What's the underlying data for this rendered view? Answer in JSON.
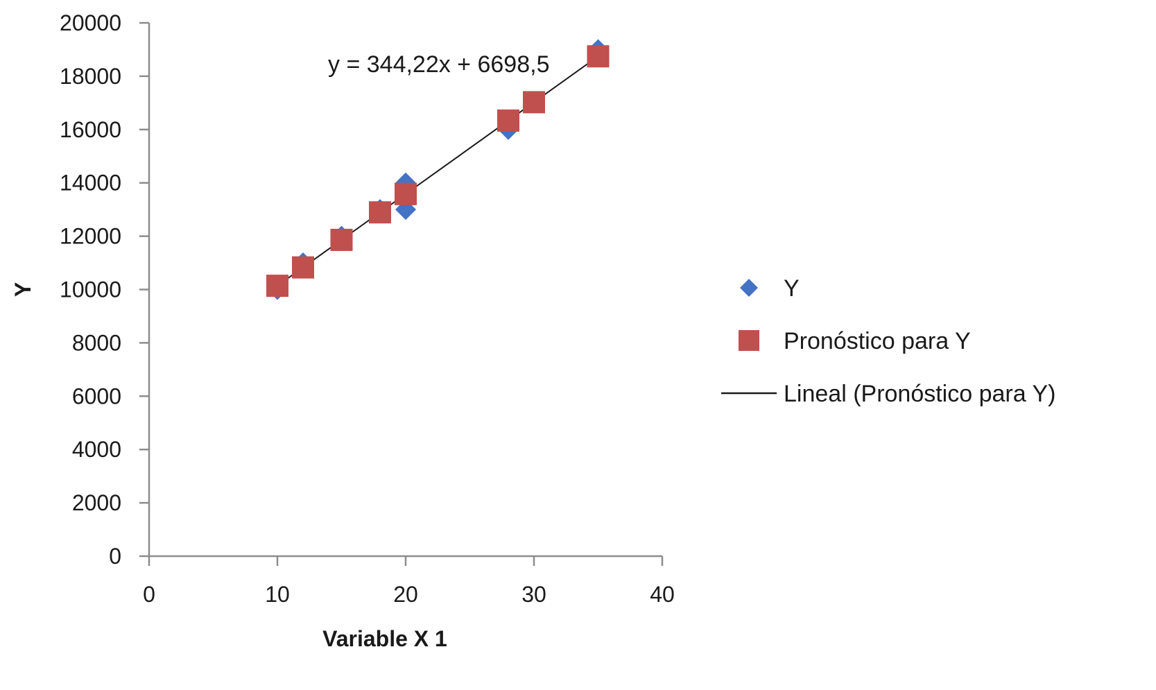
{
  "chart_data": {
    "type": "scatter",
    "xlabel": "Variable X 1",
    "ylabel": "Y",
    "xlim": [
      0,
      40
    ],
    "ylim": [
      0,
      20000
    ],
    "x_ticks": [
      0,
      10,
      20,
      30,
      40
    ],
    "y_ticks": [
      0,
      2000,
      4000,
      6000,
      8000,
      10000,
      12000,
      14000,
      16000,
      18000,
      20000
    ],
    "grid": false,
    "legend_position": "right",
    "series": [
      {
        "name": "Y",
        "marker": "diamond",
        "color": "#4472C4",
        "points": [
          {
            "x": 10,
            "y": 10000
          },
          {
            "x": 12,
            "y": 11000
          },
          {
            "x": 15,
            "y": 12000
          },
          {
            "x": 18,
            "y": 13000
          },
          {
            "x": 20,
            "y": 14000
          },
          {
            "x": 20,
            "y": 13000
          },
          {
            "x": 28,
            "y": 16000
          },
          {
            "x": 30,
            "y": 17000
          },
          {
            "x": 35,
            "y": 19000
          }
        ]
      },
      {
        "name": "Pronóstico para Y",
        "marker": "square",
        "color": "#C0504D",
        "points": [
          {
            "x": 10,
            "y": 10140.7
          },
          {
            "x": 12,
            "y": 10829.1
          },
          {
            "x": 15,
            "y": 11861.8
          },
          {
            "x": 18,
            "y": 12894.5
          },
          {
            "x": 20,
            "y": 13582.9
          },
          {
            "x": 20,
            "y": 13582.9
          },
          {
            "x": 28,
            "y": 16336.7
          },
          {
            "x": 30,
            "y": 17025.1
          },
          {
            "x": 35,
            "y": 18746.2
          }
        ]
      }
    ],
    "trendline": {
      "name": "Lineal (Pronóstico para Y)",
      "color": "#1a1a1a",
      "slope": 344.22,
      "intercept": 6698.5,
      "x_range": [
        10,
        35
      ],
      "equation_label": "y = 344,22x + 6698,5"
    }
  }
}
